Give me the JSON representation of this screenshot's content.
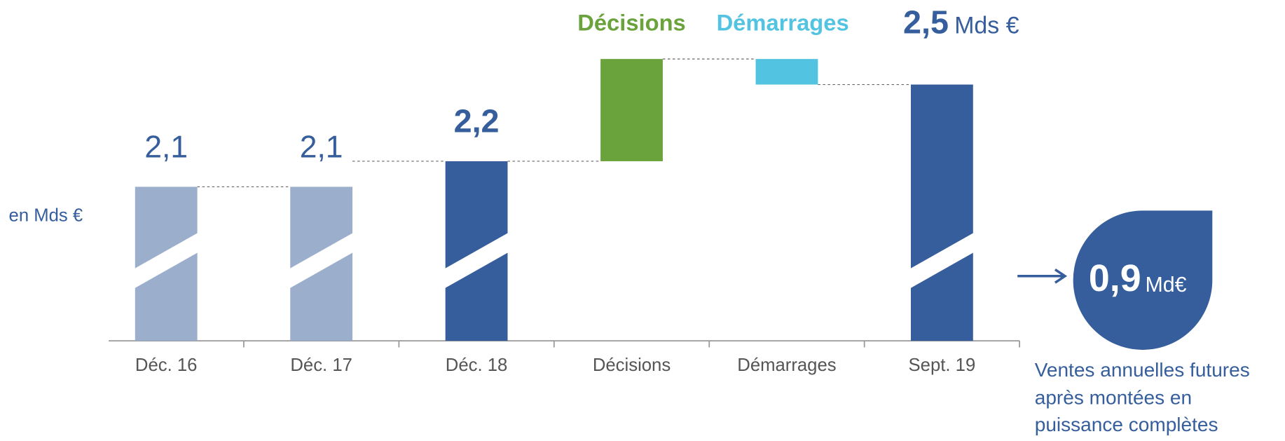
{
  "chart_data": {
    "type": "waterfall",
    "ylabel": "en Mds €",
    "categories": [
      "Déc. 16",
      "Déc. 17",
      "Déc. 18",
      "Décisions",
      "Démarrages",
      "Sept. 19"
    ],
    "values": [
      2.1,
      2.1,
      2.2,
      0.4,
      -0.1,
      2.5
    ],
    "value_labels": [
      "2,1",
      "2,1",
      "2,2",
      null,
      null,
      "2,5"
    ],
    "measure": [
      "total",
      "total",
      "total",
      "delta",
      "delta",
      "total"
    ],
    "colors": [
      "#9bafcd",
      "#9bafcd",
      "#365e9c",
      "#6aa23c",
      "#52c3e0",
      "#365e9c"
    ],
    "legend": [
      "Décisions",
      "Démarrages"
    ],
    "total_unit": "Mds €",
    "callout": {
      "value": "0,9",
      "unit": "Md€",
      "lines": [
        "Ventes annuelles futures",
        "après montées en",
        "puissance complètes"
      ]
    }
  }
}
